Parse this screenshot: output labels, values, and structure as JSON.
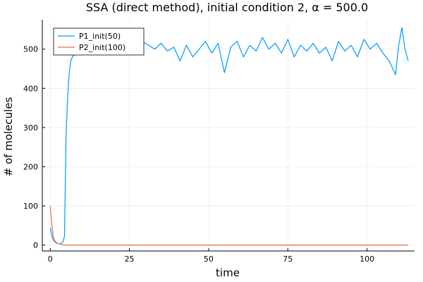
{
  "chart_data": {
    "type": "line",
    "title": "SSA (direct method), initial condition 2, α = 500.0",
    "xlabel": "time",
    "ylabel": "# of molecules",
    "xlim": [
      -2.5,
      115
    ],
    "ylim": [
      -15,
      575
    ],
    "xticks": [
      0,
      25,
      50,
      75,
      100
    ],
    "yticks": [
      0,
      100,
      200,
      300,
      400,
      500
    ],
    "grid": true,
    "legend_position": "top-left",
    "series": [
      {
        "name": "P1_init(50)",
        "color": "#009af9",
        "x": [
          0,
          0.5,
          1.0,
          1.5,
          2.0,
          2.5,
          3.0,
          3.5,
          4.0,
          4.5,
          5.0,
          5.5,
          6.0,
          6.5,
          7.0,
          7.5,
          8,
          9,
          10,
          11,
          12,
          13,
          14,
          15,
          17,
          19,
          21,
          23,
          25,
          27,
          29,
          31,
          33,
          35,
          37,
          39,
          41,
          43,
          45,
          47,
          49,
          51,
          53,
          55,
          57,
          59,
          61,
          63,
          65,
          67,
          69,
          71,
          73,
          75,
          77,
          79,
          81,
          83,
          85,
          87,
          89,
          91,
          93,
          95,
          97,
          99,
          101,
          103,
          105,
          107,
          109,
          110,
          111,
          112,
          113
        ],
        "y": [
          45,
          25,
          12,
          8,
          5,
          4,
          3,
          5,
          8,
          22,
          280,
          380,
          440,
          470,
          480,
          485,
          490,
          495,
          485,
          500,
          495,
          505,
          490,
          500,
          510,
          505,
          520,
          500,
          515,
          505,
          520,
          510,
          500,
          515,
          495,
          505,
          470,
          510,
          480,
          500,
          520,
          490,
          515,
          440,
          505,
          520,
          480,
          510,
          495,
          530,
          500,
          515,
          490,
          525,
          480,
          510,
          495,
          515,
          490,
          505,
          470,
          520,
          495,
          510,
          480,
          525,
          500,
          515,
          490,
          470,
          435,
          510,
          555,
          500,
          470
        ]
      },
      {
        "name": "P2_init(100)",
        "color": "#e26f46",
        "x": [
          0,
          0.5,
          1.0,
          1.5,
          2.0,
          2.5,
          3.0,
          3.5,
          4.0,
          5,
          10,
          20,
          40,
          60,
          80,
          100,
          113
        ],
        "y": [
          100,
          55,
          20,
          10,
          6,
          4,
          3,
          2,
          1,
          0,
          0,
          0,
          0,
          0,
          0,
          0,
          0
        ]
      }
    ]
  }
}
